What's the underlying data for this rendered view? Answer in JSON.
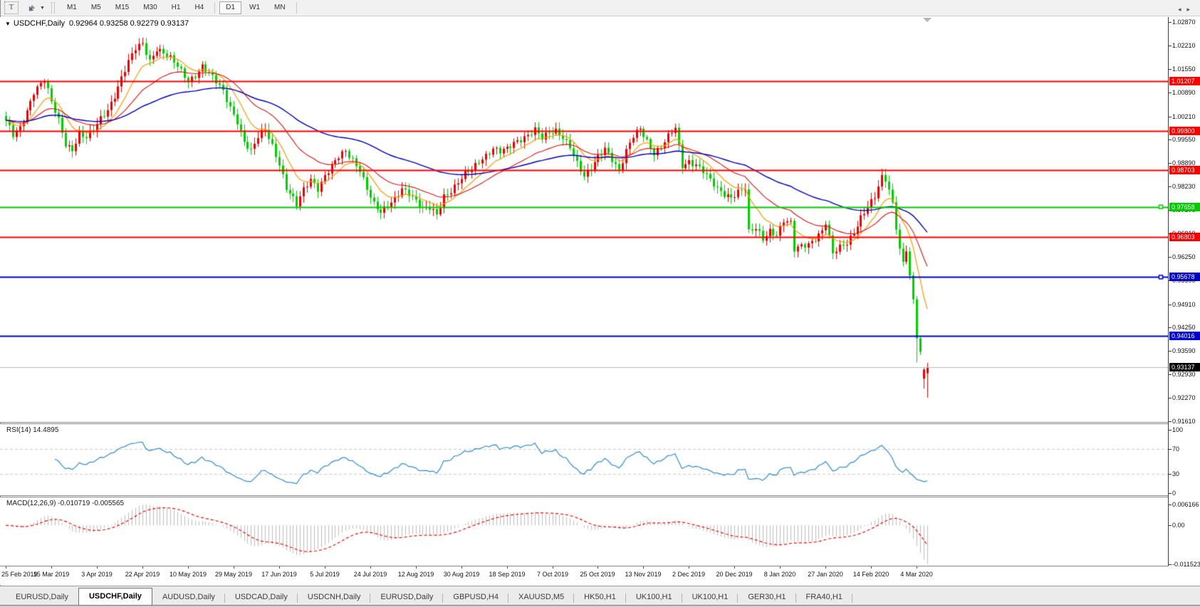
{
  "toolbar": {
    "text_tool_label": "T",
    "icons": [
      "text-tool-icon",
      "arrows-tool-icon",
      "dropdown-caret-icon"
    ],
    "timeframes": [
      "M1",
      "M5",
      "M15",
      "M30",
      "H1",
      "H4",
      "D1",
      "W1",
      "MN"
    ],
    "active_timeframe": "D1"
  },
  "chart": {
    "dropdown_icon": "chart-symbol-caret",
    "title_symbol": "USDCHF,Daily",
    "ohlc_text": "0.92964 0.93258 0.92279 0.93137",
    "axis_ticks": [
      "1.02870",
      "1.02210",
      "1.01550",
      "1.00890",
      "1.00210",
      "0.99550",
      "0.98890",
      "0.98230",
      "0.97570",
      "0.96910",
      "0.96250",
      "0.95590",
      "0.94910",
      "0.94250",
      "0.93590",
      "0.92930",
      "0.92270",
      "0.91610"
    ],
    "hlines": [
      {
        "label": "1.01207",
        "price": 1.01207,
        "color": "#ff0000",
        "handle": false
      },
      {
        "label": "0.99800",
        "price": 0.998,
        "color": "#ff0000",
        "handle": false
      },
      {
        "label": "0.98703",
        "price": 0.98703,
        "color": "#ff0000",
        "handle": false
      },
      {
        "label": "0.97658",
        "price": 0.97658,
        "color": "#00cc00",
        "handle": true
      },
      {
        "label": "0.96803",
        "price": 0.96803,
        "color": "#ff0000",
        "handle": false
      },
      {
        "label": "0.95678",
        "price": 0.95678,
        "color": "#0000cd",
        "handle": true
      },
      {
        "label": "0.94016",
        "price": 0.94016,
        "color": "#0000cd",
        "handle": false
      }
    ],
    "current_price": {
      "label": "0.93137",
      "price": 0.93137,
      "line_color": "#bbbbbb",
      "label_bg": "#000000"
    }
  },
  "rsi": {
    "title": "RSI(14)",
    "value": "14.4895",
    "axis": [
      "100",
      "70",
      "30",
      "0"
    ],
    "levels": [
      70,
      30
    ]
  },
  "macd": {
    "title": "MACD(12,26,9)",
    "value": "-0.010719 -0.005565",
    "axis_max_label": "0.006166",
    "axis_zero_label": "0.00",
    "axis_min_label": "-0.011523",
    "axis_max": 0.006166,
    "axis_min": -0.011523
  },
  "dates": [
    "25 Feb 2019",
    "15 Mar 2019",
    "3 Apr 2019",
    "22 Apr 2019",
    "10 May 2019",
    "29 May 2019",
    "17 Jun 2019",
    "5 Jul 2019",
    "24 Jul 2019",
    "12 Aug 2019",
    "30 Aug 2019",
    "18 Sep 2019",
    "7 Oct 2019",
    "25 Oct 2019",
    "13 Nov 2019",
    "2 Dec 2019",
    "20 Dec 2019",
    "8 Jan 2020",
    "27 Jan 2020",
    "14 Feb 2020",
    "4 Mar 2020"
  ],
  "tabs": {
    "items": [
      "EURUSD,Daily",
      "USDCHF,Daily",
      "AUDUSD,Daily",
      "USDCAD,Daily",
      "USDCNH,Daily",
      "EURUSD,Daily",
      "GBPUSD,H4",
      "XAUUSD,M5",
      "HK50,H1",
      "UK100,H1",
      "UK100,H1",
      "GER30,H1",
      "FRA40,H1"
    ],
    "active_index": 1,
    "scroll_icons": [
      "tab-scroll-left-icon",
      "tab-scroll-right-icon"
    ]
  },
  "colors": {
    "bull_candle": "#ee0000",
    "bear_candle": "#00ce00",
    "ma_fast": "#ff9900",
    "ma_mid": "#dd1111",
    "ma_slow": "#0000b8",
    "rsi_line": "#2e8bd0",
    "macd_bar": "#bdbdbd",
    "macd_signal": "#ff0000",
    "level_dash": "#cccccc"
  },
  "chart_data": {
    "type": "candlestick",
    "symbol": "USDCHF",
    "timeframe": "Daily",
    "candle_count": 264,
    "price_axis_range": [
      0.9161,
      1.03
    ],
    "latest_candle": {
      "open": 0.92964,
      "high": 0.93258,
      "low": 0.92279,
      "close": 0.93137
    },
    "horizontal_levels": [
      1.01207,
      0.998,
      0.98703,
      0.97658,
      0.96803,
      0.95678,
      0.94016
    ],
    "moving_averages": [
      {
        "period": 10
      },
      {
        "period": 25
      },
      {
        "period": 65
      }
    ],
    "indicators": {
      "rsi_period": 14,
      "rsi_value": 14.4895,
      "macd_params": [
        12,
        26,
        9
      ],
      "macd_values": [
        -0.010719,
        -0.005565
      ]
    },
    "price_keypoints": [
      [
        0,
        1.0005
      ],
      [
        2,
        0.9966
      ],
      [
        4,
        0.999
      ],
      [
        6,
        1.004
      ],
      [
        8,
        1.0092
      ],
      [
        10,
        1.0112
      ],
      [
        11,
        1.0122
      ],
      [
        13,
        1.0058
      ],
      [
        15,
        1.001
      ],
      [
        17,
        0.9945
      ],
      [
        19,
        0.993
      ],
      [
        21,
        0.9972
      ],
      [
        23,
        0.9958
      ],
      [
        25,
        0.998
      ],
      [
        27,
        1.0015
      ],
      [
        29,
        1.0042
      ],
      [
        31,
        1.0082
      ],
      [
        33,
        1.013
      ],
      [
        35,
        1.0172
      ],
      [
        37,
        1.021
      ],
      [
        39,
        1.0226
      ],
      [
        41,
        1.018
      ],
      [
        43,
        1.0214
      ],
      [
        45,
        1.02
      ],
      [
        47,
        1.0182
      ],
      [
        49,
        1.016
      ],
      [
        52,
        1.0122
      ],
      [
        54,
        1.014
      ],
      [
        56,
        1.0164
      ],
      [
        58,
        1.014
      ],
      [
        60,
        1.0116
      ],
      [
        62,
        1.009
      ],
      [
        64,
        1.0048
      ],
      [
        66,
        1.001
      ],
      [
        68,
        0.995
      ],
      [
        70,
        0.992
      ],
      [
        72,
        0.996
      ],
      [
        74,
        0.9984
      ],
      [
        76,
        0.994
      ],
      [
        78,
        0.989
      ],
      [
        80,
        0.982
      ],
      [
        82,
        0.9786
      ],
      [
        83,
        0.9768
      ],
      [
        85,
        0.9812
      ],
      [
        87,
        0.9844
      ],
      [
        89,
        0.982
      ],
      [
        91,
        0.9856
      ],
      [
        93,
        0.988
      ],
      [
        95,
        0.9904
      ],
      [
        97,
        0.992
      ],
      [
        99,
        0.9898
      ],
      [
        101,
        0.9874
      ],
      [
        103,
        0.982
      ],
      [
        105,
        0.9772
      ],
      [
        107,
        0.9746
      ],
      [
        109,
        0.9766
      ],
      [
        111,
        0.979
      ],
      [
        113,
        0.9822
      ],
      [
        115,
        0.9806
      ],
      [
        117,
        0.978
      ],
      [
        119,
        0.9756
      ],
      [
        121,
        0.9762
      ],
      [
        123,
        0.9746
      ],
      [
        125,
        0.98
      ],
      [
        127,
        0.9812
      ],
      [
        129,
        0.9832
      ],
      [
        131,
        0.9856
      ],
      [
        133,
        0.987
      ],
      [
        135,
        0.9896
      ],
      [
        137,
        0.9914
      ],
      [
        139,
        0.9932
      ],
      [
        141,
        0.992
      ],
      [
        143,
        0.9926
      ],
      [
        145,
        0.9944
      ],
      [
        147,
        0.9958
      ],
      [
        149,
        0.9972
      ],
      [
        151,
        0.9986
      ],
      [
        153,
        0.9958
      ],
      [
        155,
        0.997
      ],
      [
        157,
        0.9978
      ],
      [
        159,
        0.9964
      ],
      [
        161,
        0.994
      ],
      [
        163,
        0.989
      ],
      [
        165,
        0.9848
      ],
      [
        167,
        0.987
      ],
      [
        169,
        0.9906
      ],
      [
        171,
        0.9934
      ],
      [
        173,
        0.9904
      ],
      [
        175,
        0.9868
      ],
      [
        177,
        0.992
      ],
      [
        179,
        0.9962
      ],
      [
        181,
        0.9986
      ],
      [
        183,
        0.9954
      ],
      [
        185,
        0.992
      ],
      [
        187,
        0.9936
      ],
      [
        189,
        0.9962
      ],
      [
        191,
        0.9986
      ],
      [
        193,
        0.988
      ],
      [
        195,
        0.9896
      ],
      [
        197,
        0.9888
      ],
      [
        199,
        0.9868
      ],
      [
        201,
        0.9838
      ],
      [
        203,
        0.9812
      ],
      [
        205,
        0.98
      ],
      [
        207,
        0.9796
      ],
      [
        209,
        0.9812
      ],
      [
        211,
        0.982
      ],
      [
        212,
        0.9693
      ],
      [
        214,
        0.9702
      ],
      [
        216,
        0.9672
      ],
      [
        218,
        0.97
      ],
      [
        220,
        0.969
      ],
      [
        222,
        0.973
      ],
      [
        224,
        0.9718
      ],
      [
        225,
        0.9642
      ],
      [
        227,
        0.9652
      ],
      [
        229,
        0.966
      ],
      [
        231,
        0.968
      ],
      [
        233,
        0.9702
      ],
      [
        234,
        0.9724
      ],
      [
        236,
        0.9632
      ],
      [
        238,
        0.9648
      ],
      [
        240,
        0.9662
      ],
      [
        242,
        0.9696
      ],
      [
        244,
        0.974
      ],
      [
        246,
        0.9768
      ],
      [
        248,
        0.9792
      ],
      [
        250,
        0.9845
      ],
      [
        251,
        0.984
      ],
      [
        252,
        0.9812
      ],
      [
        253,
        0.9775
      ],
      [
        254,
        0.9712
      ],
      [
        255,
        0.965
      ],
      [
        256,
        0.9612
      ],
      [
        257,
        0.964
      ]
    ],
    "final_candles": [
      {
        "o": 0.964,
        "h": 0.9652,
        "l": 0.956,
        "c": 0.9572
      },
      {
        "o": 0.9572,
        "h": 0.9582,
        "l": 0.9492,
        "c": 0.9505
      },
      {
        "o": 0.9505,
        "h": 0.9515,
        "l": 0.9327,
        "c": 0.9395
      },
      {
        "o": 0.9395,
        "h": 0.9402,
        "l": 0.9348,
        "c": 0.9357
      },
      {
        "o": 0.9281,
        "h": 0.9311,
        "l": 0.9253,
        "c": 0.9307
      },
      {
        "o": 0.92964,
        "h": 0.93258,
        "l": 0.92279,
        "c": 0.93137
      }
    ]
  }
}
